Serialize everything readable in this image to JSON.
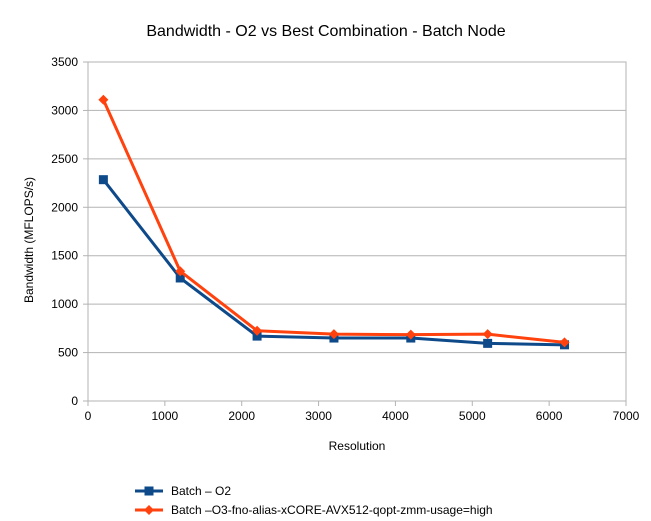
{
  "chart_data": {
    "type": "line",
    "title": "Bandwidth - O2 vs Best Combination - Batch Node",
    "xlabel": "Resolution",
    "ylabel": "Bandwidth (MFLOPS/s)",
    "xlim": [
      0,
      7000
    ],
    "ylim": [
      0,
      3500
    ],
    "xticks": [
      0,
      1000,
      2000,
      3000,
      4000,
      5000,
      6000,
      7000
    ],
    "yticks": [
      0,
      500,
      1000,
      1500,
      2000,
      2500,
      3000,
      3500
    ],
    "grid": "horizontal",
    "legend_position": "bottom-left",
    "x": [
      200,
      1200,
      2200,
      3200,
      4200,
      5200,
      6200
    ],
    "series": [
      {
        "name": "Batch – O2",
        "color": "#0e4a8a",
        "marker": "square",
        "values": [
          2285,
          1270,
          670,
          650,
          650,
          595,
          580
        ]
      },
      {
        "name": "Batch –O3-fno-alias-xCORE-AVX512-qopt-zmm-usage=high",
        "color": "#ff420e",
        "marker": "diamond",
        "values": [
          3110,
          1340,
          725,
          690,
          685,
          690,
          605
        ]
      }
    ]
  }
}
